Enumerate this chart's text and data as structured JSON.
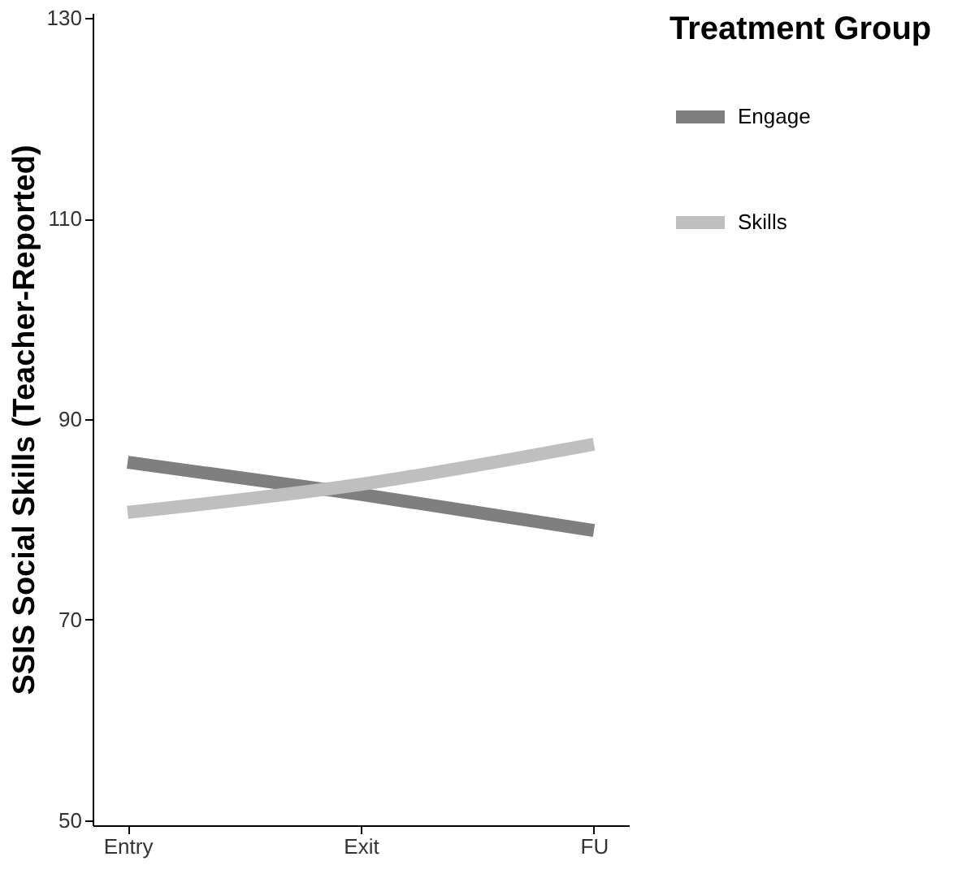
{
  "chart_data": {
    "type": "line",
    "ylabel": "SSIS Social Skills (Teacher-Reported)",
    "legend_title": "Treatment Group",
    "legend": "right",
    "grid": false,
    "line_style": "solid",
    "marker": "none",
    "categories": [
      "Entry",
      "Exit",
      "FU"
    ],
    "ylim": [
      49.5,
      130.5
    ],
    "yticks": [
      50,
      70,
      90,
      110,
      130
    ],
    "series": [
      {
        "name": "Engage",
        "color": "#7f7f7f",
        "values": [
          85.7,
          82.5,
          78.9
        ]
      },
      {
        "name": "Skills",
        "color": "#bfbfbf",
        "values": [
          80.7,
          83.5,
          87.5
        ]
      }
    ]
  }
}
